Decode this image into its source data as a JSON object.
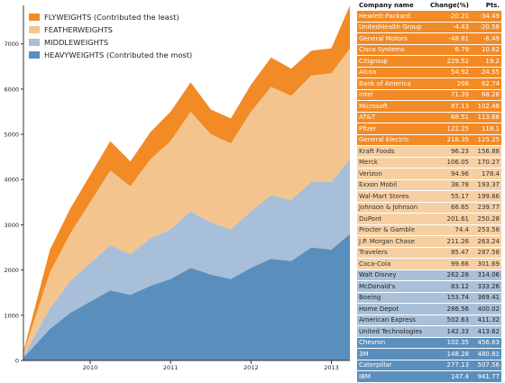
{
  "legend": [
    {
      "label": "FLYWEIGHTS  (Contributed the least)",
      "color": "#f28a25"
    },
    {
      "label": "FEATHERWEIGHTS",
      "color": "#f4c48e"
    },
    {
      "label": "MIDDLEWEIGHTS",
      "color": "#a7bfd8"
    },
    {
      "label": "HEAVYWEIGHTS  (Contributed the most)",
      "color": "#5a8fbd"
    }
  ],
  "chart_data": {
    "type": "area",
    "stacked": true,
    "x_ticks": [
      "2010",
      "2011",
      "2012",
      "2013"
    ],
    "y_ticks": [
      "0",
      "1000",
      "2000",
      "3000",
      "4000",
      "5000",
      "6000",
      "7000"
    ],
    "ylim": [
      0,
      7850
    ],
    "xlim": [
      2009.17,
      2013.23
    ],
    "x": [
      2009.17,
      2009.5,
      2009.75,
      2010.0,
      2010.25,
      2010.5,
      2010.75,
      2011.0,
      2011.25,
      2011.5,
      2011.75,
      2012.0,
      2012.25,
      2012.5,
      2012.75,
      2013.0,
      2013.23
    ],
    "series": [
      {
        "name": "HEAVYWEIGHTS",
        "color": "#5a8fbd",
        "values": [
          60,
          700,
          1050,
          1300,
          1550,
          1450,
          1650,
          1800,
          2050,
          1900,
          1800,
          2050,
          2250,
          2200,
          2500,
          2450,
          2800
        ]
      },
      {
        "name": "MIDDLEWEIGHTS",
        "color": "#a7bfd8",
        "values": [
          40,
          450,
          700,
          850,
          1000,
          900,
          1050,
          1100,
          1250,
          1150,
          1100,
          1250,
          1400,
          1350,
          1450,
          1500,
          1650
        ]
      },
      {
        "name": "FEATHERWEIGHTS",
        "color": "#f4c48e",
        "values": [
          60,
          800,
          1050,
          1350,
          1650,
          1500,
          1750,
          1950,
          2200,
          1950,
          1900,
          2200,
          2400,
          2300,
          2350,
          2400,
          2450
        ]
      },
      {
        "name": "FLYWEIGHTS",
        "color": "#f28a25",
        "values": [
          40,
          500,
          550,
          600,
          650,
          550,
          600,
          650,
          650,
          550,
          550,
          600,
          650,
          600,
          550,
          550,
          950
        ]
      }
    ]
  },
  "table": {
    "headers": [
      "Company name",
      "Change(%)",
      "Pts."
    ],
    "rows": [
      {
        "name": "Hewlett-Packard",
        "change": "-20.21",
        "pts": "-34.49",
        "group": "fly"
      },
      {
        "name": "UnitedHealth Group",
        "change": "-4.43",
        "pts": "-20.58",
        "group": "fly"
      },
      {
        "name": "General Motors",
        "change": "-48.81",
        "pts": "-6.49",
        "group": "fly"
      },
      {
        "name": "Cisco Systems",
        "change": "6.79",
        "pts": "10.62",
        "group": "fly"
      },
      {
        "name": "Citigroup",
        "change": "229.52",
        "pts": "19.2",
        "group": "fly"
      },
      {
        "name": "Alcoa",
        "change": "54.92",
        "pts": "24.55",
        "group": "fly"
      },
      {
        "name": "Bank of America",
        "change": "208",
        "pts": "62.74",
        "group": "fly"
      },
      {
        "name": "Intel",
        "change": "71.39",
        "pts": "68.28",
        "group": "fly"
      },
      {
        "name": "Microsoft",
        "change": "87.13",
        "pts": "102.48",
        "group": "fly"
      },
      {
        "name": "AT&T",
        "change": "68.51",
        "pts": "113.68",
        "group": "fly"
      },
      {
        "name": "Pfizer",
        "change": "122.25",
        "pts": "118.1",
        "group": "fly"
      },
      {
        "name": "General Electric",
        "change": "218.35",
        "pts": "125.25",
        "group": "fly"
      },
      {
        "name": "Kraft Foods",
        "change": "96.23",
        "pts": "156.88",
        "group": "feather"
      },
      {
        "name": "Merck",
        "change": "106.05",
        "pts": "170.27",
        "group": "feather"
      },
      {
        "name": "Verizon",
        "change": "94.96",
        "pts": "178.4",
        "group": "feather"
      },
      {
        "name": "Exxon Mobil",
        "change": "38.78",
        "pts": "193.37",
        "group": "feather"
      },
      {
        "name": "Wal-Mart Stores",
        "change": "55.17",
        "pts": "199.86",
        "group": "feather"
      },
      {
        "name": "Johnson & Johnson",
        "change": "66.65",
        "pts": "239.77",
        "group": "feather"
      },
      {
        "name": "DuPont",
        "change": "201.61",
        "pts": "250.28",
        "group": "feather"
      },
      {
        "name": "Procter & Gamble",
        "change": "74.4",
        "pts": "253.58",
        "group": "feather"
      },
      {
        "name": "J.P. Morgan Chase",
        "change": "211.26",
        "pts": "263.24",
        "group": "feather"
      },
      {
        "name": "Travelers",
        "change": "85.47",
        "pts": "287.58",
        "group": "feather"
      },
      {
        "name": "Coca-Cola",
        "change": "99.66",
        "pts": "301.69",
        "group": "feather"
      },
      {
        "name": "Walt Disney",
        "change": "262.28",
        "pts": "314.06",
        "group": "middle"
      },
      {
        "name": "McDonald's",
        "change": "83.12",
        "pts": "333.26",
        "group": "middle"
      },
      {
        "name": "Boeing",
        "change": "153.74",
        "pts": "369.41",
        "group": "middle"
      },
      {
        "name": "Home Depot",
        "change": "286.56",
        "pts": "400.02",
        "group": "middle"
      },
      {
        "name": "American Express",
        "change": "502.63",
        "pts": "411.32",
        "group": "middle"
      },
      {
        "name": "United Technologies",
        "change": "142.33",
        "pts": "413.62",
        "group": "middle"
      },
      {
        "name": "Chevron",
        "change": "102.35",
        "pts": "456.63",
        "group": "heavy"
      },
      {
        "name": "3M",
        "change": "148.28",
        "pts": "480.81",
        "group": "heavy"
      },
      {
        "name": "Caterpillar",
        "change": "277.13",
        "pts": "507.56",
        "group": "heavy"
      },
      {
        "name": "IBM",
        "change": "147.4",
        "pts": "941.77",
        "group": "heavy"
      }
    ]
  },
  "colors": {
    "fly": {
      "bg": "#f28a25",
      "text": "#ffffff"
    },
    "feather": {
      "bg": "#f6cfa2",
      "text": "#333333"
    },
    "middle": {
      "bg": "#a9c0d8",
      "text": "#222222"
    },
    "heavy": {
      "bg": "#5a8fbd",
      "text": "#ffffff"
    }
  }
}
